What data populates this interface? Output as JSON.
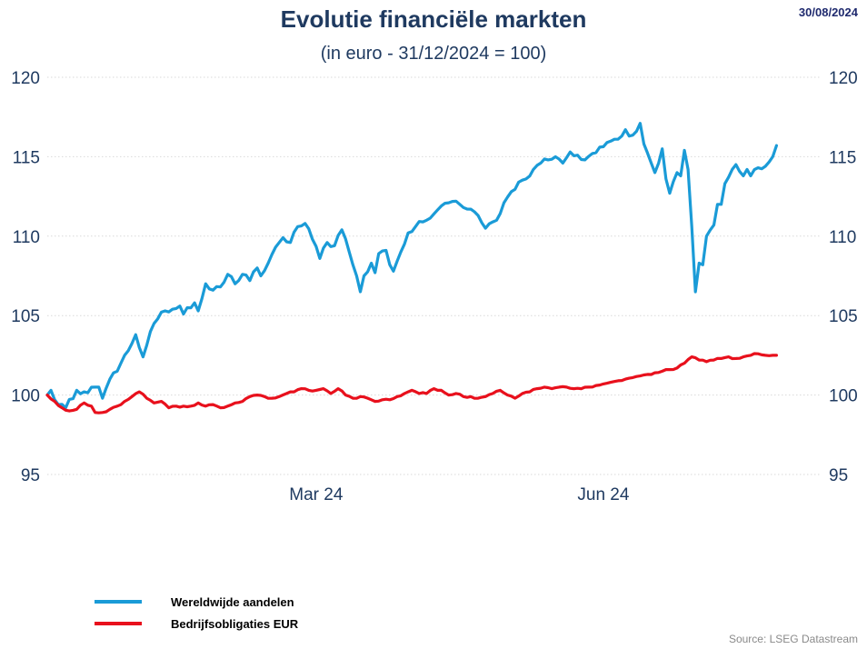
{
  "header": {
    "title": "Evolutie financiële markten",
    "subtitle": "(in euro - 31/12/2024 = 100)",
    "date": "30/08/2024"
  },
  "footer": {
    "source": "Source: LSEG Datastream"
  },
  "colors": {
    "equities": "#1a9bd7",
    "bonds": "#e8101c",
    "grid": "#d9d9d9",
    "text": "#1f3a60"
  },
  "chart_data": {
    "type": "line",
    "title": "Evolutie financiële markten",
    "subtitle": "(in euro - 31/12/2024 = 100)",
    "x_tick_labels": [
      {
        "label": "Mar 24",
        "index": 73
      },
      {
        "label": "Jun 24",
        "index": 151
      }
    ],
    "y_ticks": [
      95,
      100,
      105,
      110,
      115,
      120
    ],
    "ylim": [
      95,
      120
    ],
    "grid": "horizontal dotted",
    "legend_position": "bottom-left",
    "n_points": 211,
    "series": [
      {
        "name": "Wereldwijde aandelen",
        "color": "#1a9bd7",
        "keypoints": [
          [
            0,
            100.0
          ],
          [
            1,
            100.3
          ],
          [
            3,
            99.4
          ],
          [
            5,
            99.2
          ],
          [
            8,
            100.3
          ],
          [
            10,
            100.2
          ],
          [
            13,
            100.5
          ],
          [
            14,
            100.5
          ],
          [
            15,
            99.8
          ],
          [
            17,
            101.0
          ],
          [
            19,
            101.5
          ],
          [
            20,
            102.0
          ],
          [
            22,
            102.8
          ],
          [
            24,
            103.8
          ],
          [
            26,
            102.4
          ],
          [
            28,
            104.0
          ],
          [
            30,
            104.8
          ],
          [
            32,
            105.3
          ],
          [
            34,
            105.4
          ],
          [
            36,
            105.6
          ],
          [
            37,
            105.1
          ],
          [
            38,
            105.5
          ],
          [
            40,
            105.8
          ],
          [
            41,
            105.3
          ],
          [
            43,
            107.0
          ],
          [
            45,
            106.6
          ],
          [
            47,
            106.8
          ],
          [
            49,
            107.6
          ],
          [
            51,
            107.0
          ],
          [
            53,
            107.6
          ],
          [
            55,
            107.2
          ],
          [
            57,
            108.0
          ],
          [
            58,
            107.5
          ],
          [
            60,
            108.3
          ],
          [
            62,
            109.3
          ],
          [
            64,
            109.9
          ],
          [
            66,
            109.6
          ],
          [
            68,
            110.6
          ],
          [
            70,
            110.8
          ],
          [
            72,
            109.8
          ],
          [
            74,
            108.6
          ],
          [
            76,
            109.6
          ],
          [
            78,
            109.4
          ],
          [
            80,
            110.4
          ],
          [
            82,
            109.0
          ],
          [
            84,
            107.5
          ],
          [
            85,
            106.5
          ],
          [
            86,
            107.5
          ],
          [
            88,
            108.3
          ],
          [
            89,
            107.7
          ],
          [
            90,
            108.9
          ],
          [
            92,
            109.1
          ],
          [
            93,
            108.2
          ],
          [
            94,
            107.8
          ],
          [
            96,
            109.0
          ],
          [
            98,
            110.2
          ],
          [
            100,
            110.6
          ],
          [
            102,
            110.9
          ],
          [
            103,
            111.0
          ],
          [
            105,
            111.4
          ],
          [
            107,
            111.9
          ],
          [
            109,
            112.1
          ],
          [
            111,
            112.2
          ],
          [
            113,
            111.8
          ],
          [
            115,
            111.7
          ],
          [
            117,
            111.3
          ],
          [
            119,
            110.5
          ],
          [
            121,
            110.9
          ],
          [
            122,
            111.0
          ],
          [
            124,
            112.1
          ],
          [
            126,
            112.8
          ],
          [
            128,
            113.4
          ],
          [
            130,
            113.6
          ],
          [
            132,
            114.2
          ],
          [
            134,
            114.6
          ],
          [
            136,
            114.8
          ],
          [
            138,
            115.0
          ],
          [
            140,
            114.6
          ],
          [
            142,
            115.3
          ],
          [
            144,
            115.1
          ],
          [
            146,
            114.8
          ],
          [
            148,
            115.2
          ],
          [
            150,
            115.6
          ],
          [
            152,
            115.9
          ],
          [
            154,
            116.1
          ],
          [
            156,
            116.3
          ],
          [
            157,
            116.7
          ],
          [
            158,
            116.3
          ],
          [
            160,
            116.6
          ],
          [
            161,
            117.1
          ],
          [
            162,
            115.8
          ],
          [
            164,
            114.6
          ],
          [
            165,
            114.0
          ],
          [
            167,
            115.5
          ],
          [
            168,
            113.6
          ],
          [
            169,
            112.7
          ],
          [
            171,
            114.0
          ],
          [
            172,
            113.8
          ],
          [
            173,
            115.4
          ],
          [
            174,
            114.2
          ],
          [
            175,
            110.6
          ],
          [
            176,
            106.5
          ],
          [
            177,
            108.3
          ],
          [
            178,
            108.2
          ],
          [
            179,
            110.0
          ],
          [
            181,
            110.7
          ],
          [
            182,
            112.0
          ],
          [
            183,
            112.0
          ],
          [
            184,
            113.3
          ],
          [
            186,
            114.2
          ],
          [
            187,
            114.5
          ],
          [
            189,
            113.8
          ],
          [
            190,
            114.2
          ],
          [
            191,
            113.8
          ],
          [
            193,
            114.3
          ],
          [
            195,
            114.4
          ],
          [
            197,
            115.0
          ],
          [
            198,
            115.7
          ]
        ]
      },
      {
        "name": "Bedrijfsobligaties EUR",
        "color": "#e8101c",
        "keypoints": [
          [
            0,
            100.0
          ],
          [
            2,
            99.6
          ],
          [
            4,
            99.2
          ],
          [
            6,
            99.0
          ],
          [
            8,
            99.1
          ],
          [
            10,
            99.5
          ],
          [
            12,
            99.3
          ],
          [
            13,
            98.9
          ],
          [
            15,
            98.9
          ],
          [
            17,
            99.1
          ],
          [
            19,
            99.3
          ],
          [
            21,
            99.6
          ],
          [
            23,
            99.9
          ],
          [
            25,
            100.2
          ],
          [
            27,
            99.8
          ],
          [
            29,
            99.5
          ],
          [
            31,
            99.6
          ],
          [
            33,
            99.2
          ],
          [
            35,
            99.3
          ],
          [
            37,
            99.3
          ],
          [
            39,
            99.3
          ],
          [
            41,
            99.5
          ],
          [
            43,
            99.3
          ],
          [
            45,
            99.4
          ],
          [
            47,
            99.2
          ],
          [
            49,
            99.3
          ],
          [
            51,
            99.5
          ],
          [
            53,
            99.6
          ],
          [
            55,
            99.9
          ],
          [
            57,
            100.0
          ],
          [
            59,
            99.9
          ],
          [
            61,
            99.8
          ],
          [
            63,
            99.9
          ],
          [
            65,
            100.1
          ],
          [
            67,
            100.2
          ],
          [
            69,
            100.4
          ],
          [
            71,
            100.3
          ],
          [
            73,
            100.3
          ],
          [
            75,
            100.4
          ],
          [
            77,
            100.1
          ],
          [
            79,
            100.4
          ],
          [
            81,
            100.0
          ],
          [
            83,
            99.8
          ],
          [
            85,
            99.9
          ],
          [
            87,
            99.8
          ],
          [
            89,
            99.6
          ],
          [
            91,
            99.7
          ],
          [
            93,
            99.7
          ],
          [
            95,
            99.9
          ],
          [
            97,
            100.1
          ],
          [
            99,
            100.3
          ],
          [
            101,
            100.1
          ],
          [
            103,
            100.1
          ],
          [
            105,
            100.4
          ],
          [
            107,
            100.3
          ],
          [
            109,
            100.0
          ],
          [
            111,
            100.1
          ],
          [
            113,
            99.9
          ],
          [
            115,
            99.9
          ],
          [
            117,
            99.8
          ],
          [
            119,
            99.9
          ],
          [
            121,
            100.1
          ],
          [
            123,
            100.3
          ],
          [
            125,
            100.0
          ],
          [
            127,
            99.8
          ],
          [
            129,
            100.1
          ],
          [
            131,
            100.2
          ],
          [
            133,
            100.4
          ],
          [
            135,
            100.5
          ],
          [
            137,
            100.4
          ],
          [
            139,
            100.5
          ],
          [
            141,
            100.5
          ],
          [
            143,
            100.4
          ],
          [
            145,
            100.4
          ],
          [
            147,
            100.5
          ],
          [
            149,
            100.6
          ],
          [
            151,
            100.7
          ],
          [
            153,
            100.8
          ],
          [
            155,
            100.9
          ],
          [
            157,
            101.0
          ],
          [
            159,
            101.1
          ],
          [
            161,
            101.2
          ],
          [
            163,
            101.3
          ],
          [
            165,
            101.4
          ],
          [
            167,
            101.5
          ],
          [
            169,
            101.6
          ],
          [
            171,
            101.7
          ],
          [
            173,
            102.0
          ],
          [
            175,
            102.4
          ],
          [
            177,
            102.2
          ],
          [
            179,
            102.1
          ],
          [
            181,
            102.2
          ],
          [
            183,
            102.3
          ],
          [
            185,
            102.4
          ],
          [
            187,
            102.3
          ],
          [
            189,
            102.4
          ],
          [
            191,
            102.5
          ],
          [
            193,
            102.6
          ],
          [
            195,
            102.5
          ],
          [
            197,
            102.5
          ],
          [
            198,
            102.5
          ]
        ]
      }
    ]
  }
}
